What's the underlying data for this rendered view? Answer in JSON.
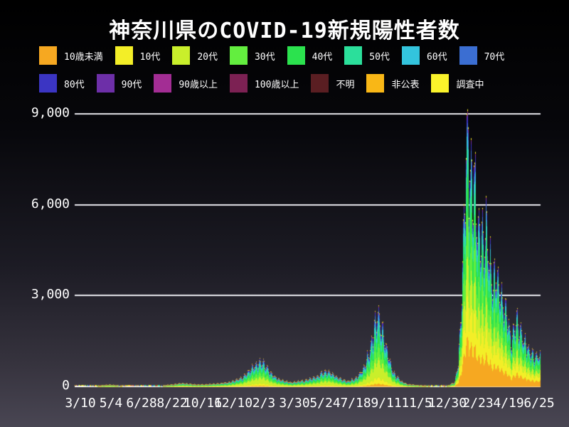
{
  "title": "神奈川県のCOVID-19新規陽性者数",
  "chart_data": {
    "type": "bar",
    "subtype": "stacked-daily-bars",
    "title": "神奈川県のCOVID-19新規陽性者数",
    "xlabel": "",
    "ylabel": "",
    "ylim": [
      0,
      9000
    ],
    "grid": "horizontal-white-lines",
    "legend_position": "top-two-rows",
    "background_top": "#000000",
    "background_bottom": "#494653",
    "gridline_color": "#e9e9ef",
    "text_color": "#ffffff",
    "y_ticks": [
      {
        "value": 0,
        "label": "0"
      },
      {
        "value": 3000,
        "label": "3,000"
      },
      {
        "value": 6000,
        "label": "6,000"
      },
      {
        "value": 9000,
        "label": "9,000"
      }
    ],
    "x_tick_labels": [
      "3/10",
      "5/4",
      "6/28",
      "8/22",
      "10/16",
      "12/10",
      "2/3",
      "3/30",
      "5/24",
      "7/18",
      "9/11",
      "11/5",
      "12/30",
      "2/23",
      "4/19",
      "6/25"
    ],
    "series": [
      {
        "name": "10歳未満",
        "color": "#f6a821",
        "share_pre2022": 0.04,
        "share_2022": 0.18
      },
      {
        "name": "10代",
        "color": "#f3ee27",
        "share_pre2022": 0.08,
        "share_2022": 0.15
      },
      {
        "name": "20代",
        "color": "#c9ef2b",
        "share_pre2022": 0.24,
        "share_2022": 0.14
      },
      {
        "name": "30代",
        "color": "#63ee3f",
        "share_pre2022": 0.17,
        "share_2022": 0.15
      },
      {
        "name": "40代",
        "color": "#2be24e",
        "share_pre2022": 0.15,
        "share_2022": 0.15
      },
      {
        "name": "50代",
        "color": "#2bdf9b",
        "share_pre2022": 0.12,
        "share_2022": 0.1
      },
      {
        "name": "60代",
        "color": "#33c4dd",
        "share_pre2022": 0.08,
        "share_2022": 0.05
      },
      {
        "name": "70代",
        "color": "#3b6ed2",
        "share_pre2022": 0.05,
        "share_2022": 0.035
      },
      {
        "name": "80代",
        "color": "#3b35c3",
        "share_pre2022": 0.035,
        "share_2022": 0.025
      },
      {
        "name": "90代",
        "color": "#6d2fa8",
        "share_pre2022": 0.015,
        "share_2022": 0.012
      },
      {
        "name": "90歳以上",
        "color": "#a32d94",
        "share_pre2022": 0.004,
        "share_2022": 0.003
      },
      {
        "name": "100歳以上",
        "color": "#7c2153",
        "share_pre2022": 0.001,
        "share_2022": 0.001
      },
      {
        "name": "不明",
        "color": "#5a1e22",
        "share_pre2022": 0.003,
        "share_2022": 0.002
      },
      {
        "name": "非公表",
        "color": "#f9b716",
        "share_pre2022": 0.003,
        "share_2022": 0.001
      },
      {
        "name": "調査中",
        "color": "#faf32b",
        "share_pre2022": 0.004,
        "share_2022": 0.005
      }
    ],
    "total_keypoints": [
      [
        0.0,
        2
      ],
      [
        0.015,
        6
      ],
      [
        0.04,
        20
      ],
      [
        0.062,
        45
      ],
      [
        0.075,
        62
      ],
      [
        0.09,
        38
      ],
      [
        0.115,
        15
      ],
      [
        0.15,
        12
      ],
      [
        0.185,
        25
      ],
      [
        0.21,
        70
      ],
      [
        0.228,
        118
      ],
      [
        0.245,
        95
      ],
      [
        0.262,
        65
      ],
      [
        0.285,
        75
      ],
      [
        0.31,
        105
      ],
      [
        0.335,
        170
      ],
      [
        0.36,
        340
      ],
      [
        0.382,
        720
      ],
      [
        0.398,
        980
      ],
      [
        0.408,
        820
      ],
      [
        0.42,
        480
      ],
      [
        0.438,
        260
      ],
      [
        0.462,
        150
      ],
      [
        0.49,
        210
      ],
      [
        0.515,
        330
      ],
      [
        0.535,
        560
      ],
      [
        0.548,
        520
      ],
      [
        0.562,
        330
      ],
      [
        0.585,
        190
      ],
      [
        0.605,
        320
      ],
      [
        0.622,
        750
      ],
      [
        0.638,
        1750
      ],
      [
        0.648,
        2680
      ],
      [
        0.656,
        2450
      ],
      [
        0.668,
        1450
      ],
      [
        0.682,
        560
      ],
      [
        0.7,
        190
      ],
      [
        0.715,
        75
      ],
      [
        0.74,
        38
      ],
      [
        0.775,
        22
      ],
      [
        0.8,
        30
      ],
      [
        0.815,
        150
      ],
      [
        0.823,
        900
      ],
      [
        0.83,
        3200
      ],
      [
        0.836,
        6800
      ],
      [
        0.841,
        9050
      ],
      [
        0.846,
        8300
      ],
      [
        0.851,
        7500
      ],
      [
        0.857,
        7900
      ],
      [
        0.863,
        6500
      ],
      [
        0.87,
        5800
      ],
      [
        0.877,
        5300
      ],
      [
        0.883,
        6100
      ],
      [
        0.89,
        4700
      ],
      [
        0.897,
        3900
      ],
      [
        0.905,
        4400
      ],
      [
        0.912,
        3800
      ],
      [
        0.92,
        3100
      ],
      [
        0.929,
        2500
      ],
      [
        0.937,
        1650
      ],
      [
        0.946,
        2600
      ],
      [
        0.954,
        2250
      ],
      [
        0.963,
        1800
      ],
      [
        0.973,
        1450
      ],
      [
        0.985,
        1100
      ],
      [
        1.0,
        1180
      ]
    ],
    "weekly_pattern_note": "daily totals jitter roughly ±20% with weekly reporting dips"
  }
}
